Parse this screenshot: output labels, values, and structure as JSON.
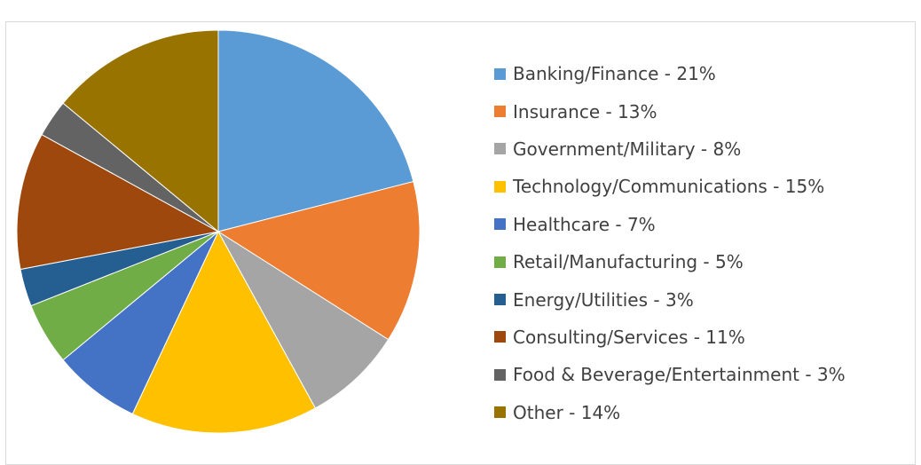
{
  "chart_data": {
    "type": "pie",
    "start_angle_deg": 0,
    "direction": "clockwise",
    "legend_position": "right",
    "slices": [
      {
        "label": "Banking/Finance - 21%",
        "category": "Banking/Finance",
        "value": 21,
        "color": "#5B9BD5"
      },
      {
        "label": "Insurance - 13%",
        "category": "Insurance",
        "value": 13,
        "color": "#ED7D31"
      },
      {
        "label": "Government/Military - 8%",
        "category": "Government/Military",
        "value": 8,
        "color": "#A5A5A5"
      },
      {
        "label": "Technology/Communications - 15%",
        "category": "Technology/Communications",
        "value": 15,
        "color": "#FFC000"
      },
      {
        "label": "Healthcare - 7%",
        "category": "Healthcare",
        "value": 7,
        "color": "#4472C4"
      },
      {
        "label": "Retail/Manufacturing - 5%",
        "category": "Retail/Manufacturing",
        "value": 5,
        "color": "#70AD47"
      },
      {
        "label": "Energy/Utilities - 3%",
        "category": "Energy/Utilities",
        "value": 3,
        "color": "#255E91"
      },
      {
        "label": "Consulting/Services - 11%",
        "category": "Consulting/Services",
        "value": 11,
        "color": "#9E480E"
      },
      {
        "label": "Food & Beverage/Entertainment - 3%",
        "category": "Food & Beverage/Entertainment",
        "value": 3,
        "color": "#636363"
      },
      {
        "label": "Other - 14%",
        "category": "Other",
        "value": 14,
        "color": "#997300"
      }
    ]
  }
}
